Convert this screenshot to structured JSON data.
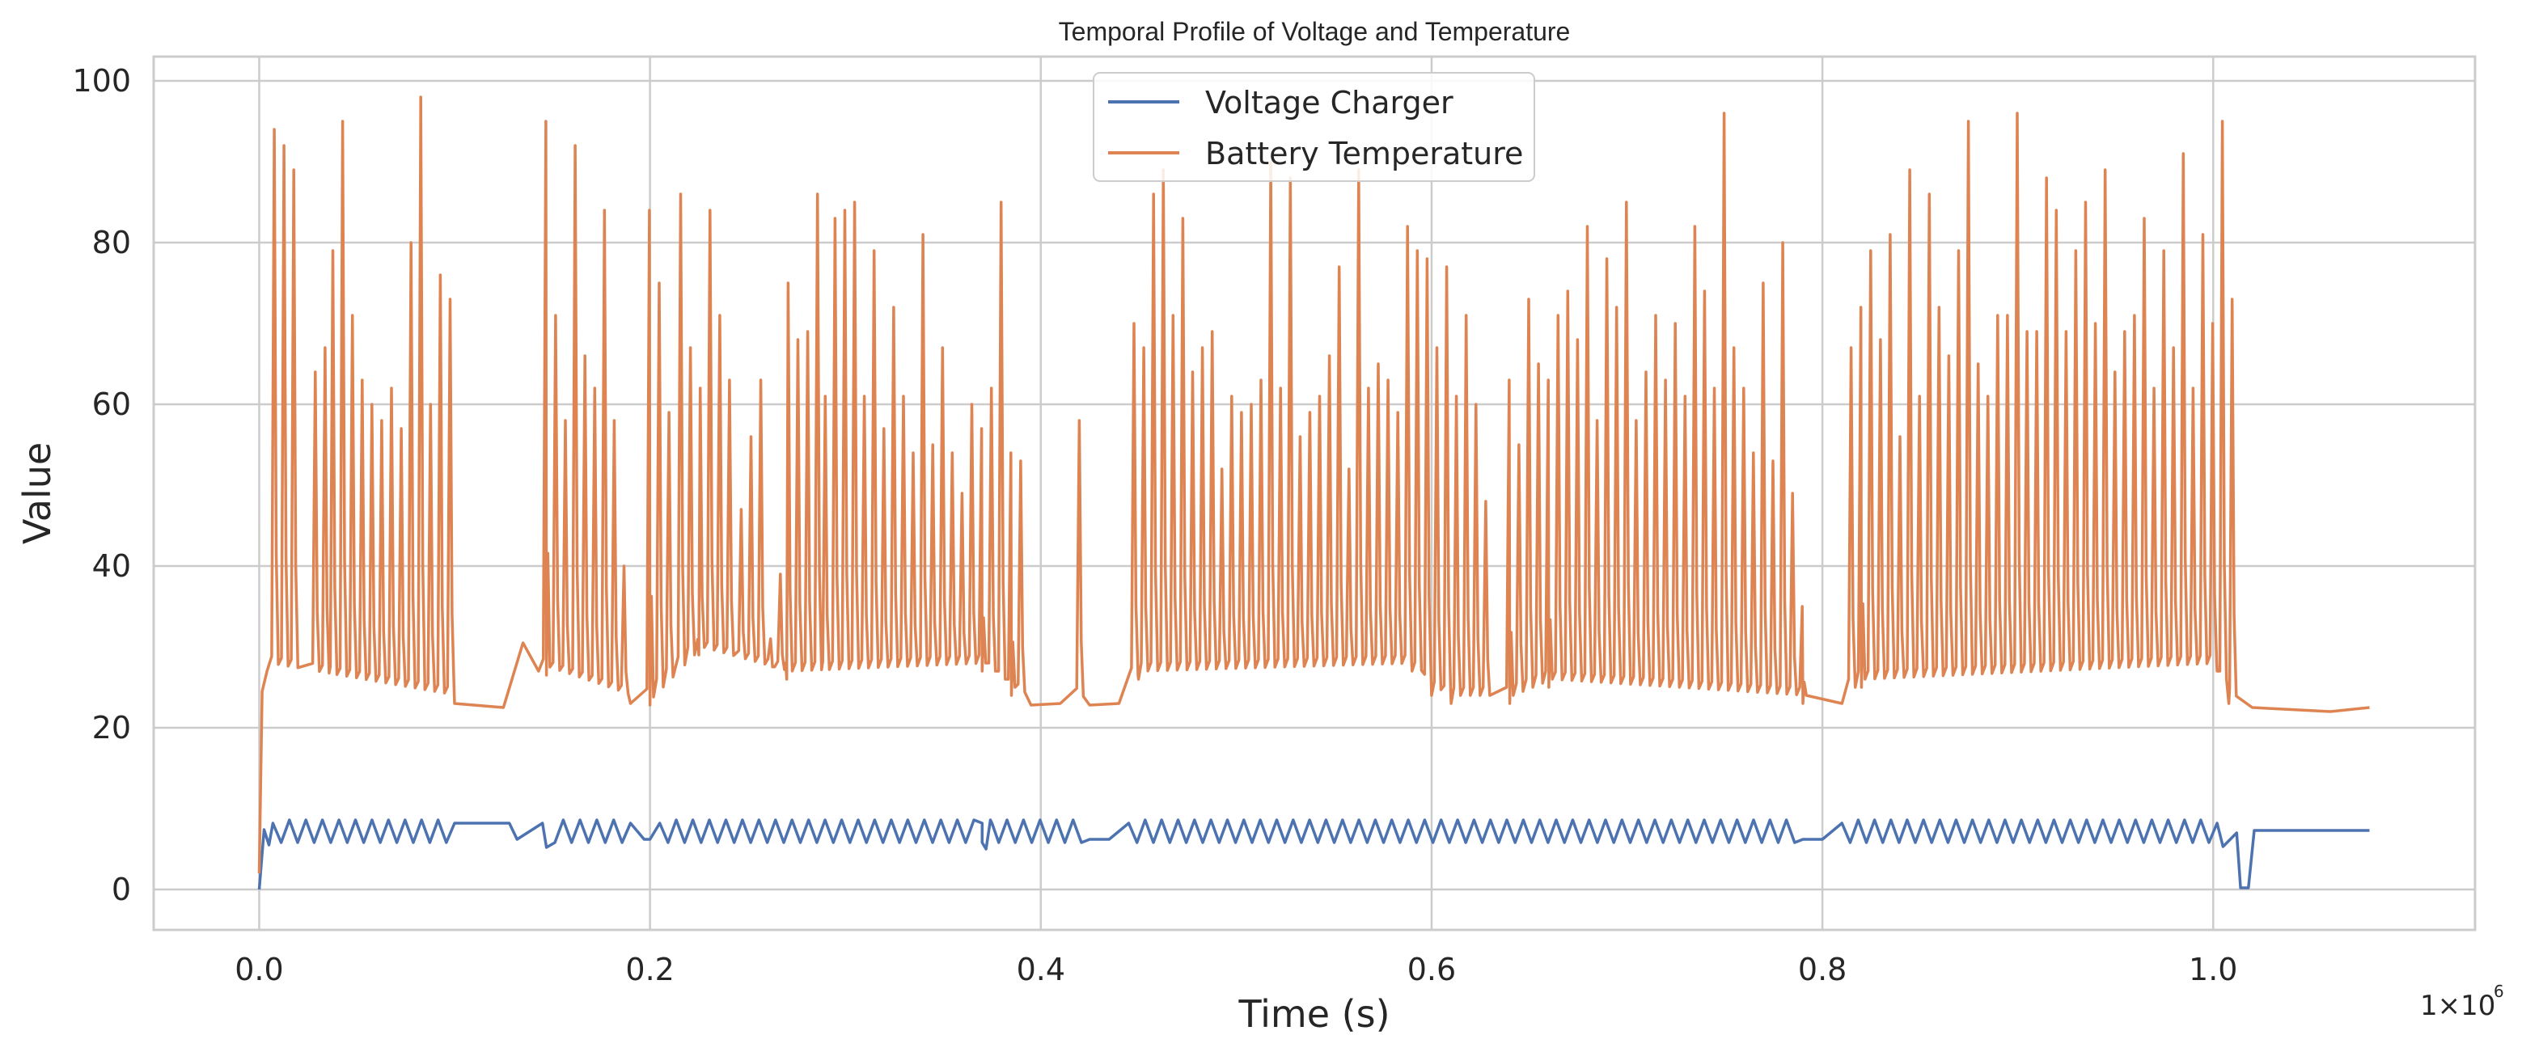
{
  "chart_data": {
    "type": "line",
    "title": "Temporal Profile of Voltage and Temperature",
    "xlabel": "Time (s)",
    "ylabel": "Value",
    "x_offset_label": "1×10",
    "x_offset_exponent": "6",
    "xlim": [
      -0.054,
      1.134
    ],
    "ylim": [
      -5,
      103
    ],
    "x_ticks": [
      0.0,
      0.2,
      0.4,
      0.6,
      0.8,
      1.0
    ],
    "x_tick_labels": [
      "0.0",
      "0.2",
      "0.4",
      "0.6",
      "0.8",
      "1.0"
    ],
    "y_ticks": [
      0,
      20,
      40,
      60,
      80,
      100
    ],
    "y_tick_labels": [
      "0",
      "20",
      "40",
      "60",
      "80",
      "100"
    ],
    "grid": true,
    "legend_position": "top-center",
    "series": [
      {
        "name": "Voltage Charger",
        "color": "#4c72b0",
        "x": [
          0.0,
          0.0025,
          0.005,
          0.007,
          0.1,
          0.128,
          0.132,
          0.145,
          0.147,
          0.19,
          0.197,
          0.2,
          0.205,
          0.37,
          0.372,
          0.375,
          0.425,
          0.435,
          0.445,
          0.79,
          0.8,
          0.81,
          1.002,
          1.005,
          1.012,
          1.014,
          1.018,
          1.021,
          1.08
        ],
        "y": [
          0,
          7.4,
          5.5,
          8.2,
          8.2,
          8.2,
          6.2,
          8.2,
          5.2,
          8.2,
          6.2,
          6.2,
          8.2,
          8.2,
          5.0,
          8.2,
          6.2,
          6.2,
          8.2,
          6.2,
          6.2,
          8.2,
          8.2,
          5.3,
          7.0,
          0.2,
          0.2,
          7.3,
          7.3
        ],
        "oscillation_band": {
          "low": 5.8,
          "high": 8.6
        },
        "oscillation_segments": [
          [
            0.007,
            0.1
          ],
          [
            0.147,
            0.19
          ],
          [
            0.205,
            0.425
          ],
          [
            0.445,
            0.79
          ],
          [
            0.81,
            1.002
          ]
        ]
      },
      {
        "name": "Battery Temperature",
        "color": "#dd8452",
        "baseline_points": [
          [
            0.0,
            2
          ],
          [
            0.0015,
            24.5
          ],
          [
            0.004,
            27
          ],
          [
            0.1,
            23
          ],
          [
            0.125,
            22.5
          ],
          [
            0.135,
            30.5
          ],
          [
            0.143,
            27
          ],
          [
            0.147,
            26.5
          ],
          [
            0.19,
            23
          ],
          [
            0.2,
            22.8
          ],
          [
            0.225,
            29
          ],
          [
            0.27,
            26
          ],
          [
            0.37,
            27
          ],
          [
            0.385,
            24
          ],
          [
            0.395,
            22.8
          ],
          [
            0.41,
            23
          ],
          [
            0.425,
            22.8
          ],
          [
            0.44,
            23
          ],
          [
            0.45,
            26
          ],
          [
            0.59,
            27
          ],
          [
            0.6,
            24
          ],
          [
            0.61,
            23
          ],
          [
            0.64,
            23
          ],
          [
            0.66,
            25
          ],
          [
            0.79,
            23
          ],
          [
            0.81,
            23
          ],
          [
            0.82,
            25
          ],
          [
            1.002,
            27
          ],
          [
            1.008,
            23
          ],
          [
            1.02,
            22.5
          ],
          [
            1.06,
            22
          ],
          [
            1.08,
            22.5
          ]
        ],
        "peak_times": [
          0.008,
          0.013,
          0.018,
          0.029,
          0.034,
          0.038,
          0.043,
          0.048,
          0.053,
          0.058,
          0.063,
          0.068,
          0.073,
          0.078,
          0.083,
          0.088,
          0.093,
          0.098,
          0.147,
          0.152,
          0.157,
          0.162,
          0.167,
          0.172,
          0.177,
          0.182,
          0.187,
          0.2,
          0.205,
          0.21,
          0.216,
          0.221,
          0.226,
          0.231,
          0.236,
          0.241,
          0.247,
          0.252,
          0.257,
          0.262,
          0.267,
          0.271,
          0.276,
          0.281,
          0.286,
          0.29,
          0.295,
          0.3,
          0.305,
          0.31,
          0.315,
          0.32,
          0.325,
          0.33,
          0.335,
          0.34,
          0.345,
          0.35,
          0.355,
          0.36,
          0.365,
          0.37,
          0.375,
          0.38,
          0.385,
          0.39,
          0.42,
          0.448,
          0.453,
          0.458,
          0.463,
          0.468,
          0.473,
          0.478,
          0.483,
          0.488,
          0.493,
          0.498,
          0.503,
          0.508,
          0.513,
          0.518,
          0.523,
          0.528,
          0.533,
          0.538,
          0.543,
          0.548,
          0.553,
          0.558,
          0.563,
          0.568,
          0.573,
          0.578,
          0.583,
          0.588,
          0.593,
          0.598,
          0.603,
          0.608,
          0.613,
          0.618,
          0.623,
          0.628,
          0.64,
          0.645,
          0.65,
          0.655,
          0.66,
          0.665,
          0.67,
          0.675,
          0.68,
          0.685,
          0.69,
          0.695,
          0.7,
          0.705,
          0.71,
          0.715,
          0.72,
          0.725,
          0.73,
          0.735,
          0.74,
          0.745,
          0.75,
          0.755,
          0.76,
          0.765,
          0.77,
          0.775,
          0.78,
          0.785,
          0.79,
          0.815,
          0.82,
          0.825,
          0.83,
          0.835,
          0.84,
          0.845,
          0.85,
          0.855,
          0.86,
          0.865,
          0.87,
          0.875,
          0.88,
          0.885,
          0.89,
          0.895,
          0.9,
          0.905,
          0.91,
          0.915,
          0.92,
          0.925,
          0.93,
          0.935,
          0.94,
          0.945,
          0.95,
          0.955,
          0.96,
          0.965,
          0.97,
          0.975,
          0.98,
          0.985,
          0.99,
          0.995,
          1.0,
          1.005,
          1.01
        ],
        "peak_values": [
          94,
          92,
          89,
          64,
          67,
          79,
          95,
          71,
          63,
          60,
          58,
          62,
          57,
          80,
          98,
          60,
          76,
          73,
          95,
          71,
          58,
          92,
          66,
          62,
          84,
          58,
          40,
          84,
          75,
          59,
          86,
          67,
          62,
          84,
          71,
          63,
          47,
          56,
          63,
          31,
          39,
          75,
          68,
          69,
          86,
          61,
          83,
          84,
          85,
          61,
          79,
          57,
          72,
          61,
          54,
          81,
          55,
          67,
          54,
          49,
          60,
          57,
          62,
          85,
          54,
          53,
          58,
          70,
          67,
          86,
          89,
          71,
          83,
          64,
          67,
          69,
          52,
          61,
          59,
          60,
          63,
          90,
          62,
          88,
          56,
          59,
          61,
          66,
          77,
          52,
          89,
          62,
          65,
          63,
          59,
          82,
          79,
          78,
          67,
          77,
          61,
          71,
          60,
          48,
          63,
          55,
          73,
          65,
          63,
          71,
          74,
          68,
          82,
          58,
          78,
          72,
          85,
          58,
          64,
          71,
          63,
          70,
          61,
          82,
          74,
          62,
          96,
          67,
          62,
          54,
          75,
          53,
          80,
          49,
          35,
          67,
          72,
          79,
          68,
          81,
          56,
          89,
          61,
          86,
          72,
          66,
          79,
          95,
          65,
          61,
          71,
          71,
          96,
          69,
          69,
          88,
          84,
          69,
          79,
          85,
          70,
          89,
          64,
          69,
          71,
          83,
          62,
          79,
          67,
          91,
          62,
          81,
          70,
          95,
          73
        ]
      }
    ]
  }
}
